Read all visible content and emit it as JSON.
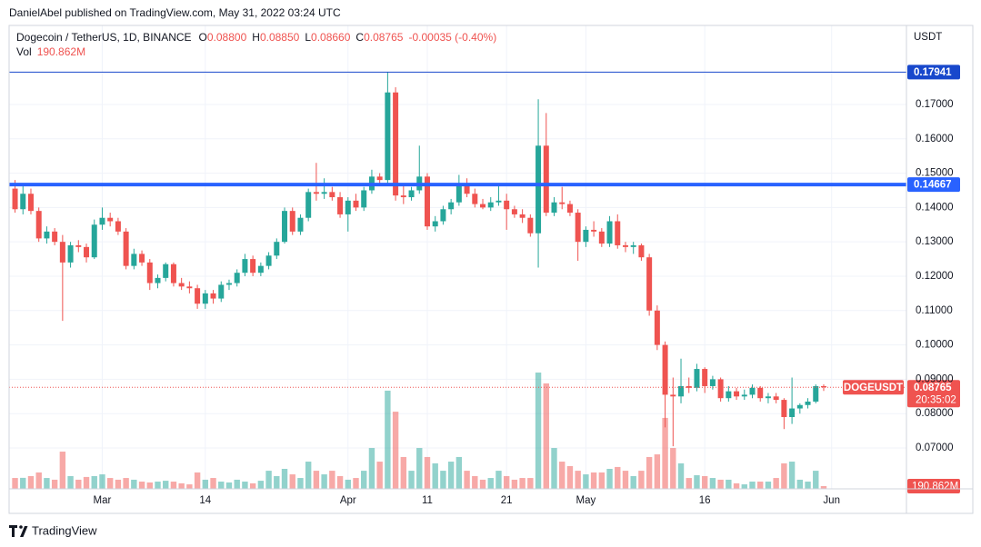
{
  "chart_data": {
    "type": "candlestick",
    "header": "DanielAbel published on TradingView.com, May 31, 2022 03:24 UTC",
    "legend": {
      "symbol": "Dogecoin / TetherUS, 1D, BINANCE",
      "open_label": "O",
      "open": "0.08800",
      "high_label": "H",
      "high": "0.08850",
      "low_label": "L",
      "low": "0.08660",
      "close_label": "C",
      "close": "0.08765",
      "change": "-0.00035 (-0.40%)",
      "volume_label": "Vol",
      "volume": "190.862M"
    },
    "currency": "USDT",
    "footer": "TradingView",
    "categories": [
      null,
      null,
      null,
      null,
      null,
      null,
      null,
      null,
      null,
      null,
      null,
      "Mar",
      null,
      null,
      null,
      null,
      null,
      null,
      null,
      null,
      null,
      null,
      null,
      null,
      "14",
      null,
      null,
      null,
      null,
      null,
      null,
      null,
      null,
      null,
      null,
      null,
      null,
      null,
      null,
      null,
      null,
      null,
      "Apr",
      null,
      null,
      null,
      null,
      null,
      null,
      null,
      null,
      null,
      "11",
      null,
      null,
      null,
      null,
      null,
      null,
      null,
      null,
      null,
      "21",
      null,
      null,
      null,
      null,
      null,
      null,
      null,
      null,
      null,
      "May",
      null,
      null,
      null,
      null,
      null,
      null,
      null,
      null,
      null,
      null,
      null,
      null,
      null,
      null,
      "16",
      null,
      null,
      null,
      null,
      null,
      null,
      null,
      null,
      null,
      null,
      null,
      null,
      null,
      null,
      null,
      "Jun",
      null,
      null,
      null,
      null,
      null,
      null,
      null,
      null,
      null
    ],
    "open": [
      0.1455,
      0.1395,
      0.144,
      0.139,
      0.131,
      0.133,
      0.13,
      0.124,
      0.129,
      0.1285,
      0.1255,
      0.135,
      0.137,
      0.136,
      0.133,
      0.123,
      0.1265,
      0.124,
      0.118,
      0.1195,
      0.1235,
      0.118,
      0.117,
      0.1165,
      0.112,
      0.115,
      0.1135,
      0.1175,
      0.118,
      0.121,
      0.125,
      0.121,
      0.123,
      0.126,
      0.13,
      0.139,
      0.133,
      0.137,
      0.1445,
      0.144,
      0.1445,
      0.143,
      0.138,
      0.142,
      0.14,
      0.145,
      0.149,
      0.148,
      0.1735,
      0.1435,
      0.143,
      0.145,
      0.149,
      0.1345,
      0.136,
      0.1395,
      0.1415,
      0.1465,
      0.144,
      0.141,
      0.14,
      0.1415,
      0.142,
      0.1395,
      0.138,
      0.137,
      0.1325,
      0.158,
      0.1385,
      0.1415,
      0.141,
      0.1385,
      0.13,
      0.1335,
      0.133,
      0.1295,
      0.136,
      0.129,
      0.1285,
      0.129,
      0.1255,
      0.11,
      0.1,
      0.0855,
      0.085,
      0.088,
      0.0875,
      0.093,
      0.088,
      0.09,
      0.0845,
      0.0865,
      0.085,
      0.0855,
      0.0875,
      0.0845,
      0.085,
      0.084,
      0.079,
      0.0815,
      0.0825,
      0.0835,
      0.088,
      null,
      null,
      null,
      null,
      null,
      null,
      null,
      null,
      null,
      null
    ],
    "high": [
      0.148,
      0.1465,
      0.1455,
      0.14,
      0.1345,
      0.134,
      0.132,
      0.13,
      0.1305,
      0.1295,
      0.1365,
      0.14,
      0.1385,
      0.137,
      0.134,
      0.128,
      0.1275,
      0.125,
      0.1205,
      0.124,
      0.124,
      0.1195,
      0.1185,
      0.1175,
      0.116,
      0.116,
      0.1185,
      0.119,
      0.122,
      0.1265,
      0.126,
      0.124,
      0.127,
      0.131,
      0.14,
      0.14,
      0.138,
      0.1455,
      0.153,
      0.1485,
      0.146,
      0.1445,
      0.143,
      0.144,
      0.146,
      0.151,
      0.15,
      0.17941,
      0.175,
      0.1465,
      0.146,
      0.158,
      0.15,
      0.1375,
      0.1405,
      0.1425,
      0.1495,
      0.1485,
      0.1455,
      0.1425,
      0.143,
      0.147,
      0.144,
      0.1405,
      0.1395,
      0.138,
      0.1715,
      0.1675,
      0.143,
      0.146,
      0.142,
      0.1395,
      0.1345,
      0.136,
      0.134,
      0.1375,
      0.138,
      0.13,
      0.13,
      0.1295,
      0.1265,
      0.1115,
      0.101,
      0.0905,
      0.096,
      0.0905,
      0.0945,
      0.0935,
      0.091,
      0.0905,
      0.088,
      0.0875,
      0.087,
      0.0885,
      0.088,
      0.086,
      0.086,
      0.0845,
      0.0905,
      0.083,
      0.0845,
      0.0885,
      0.0885,
      null,
      null,
      null,
      null,
      null,
      null,
      null,
      null,
      null,
      null
    ],
    "low": [
      0.1385,
      0.138,
      0.138,
      0.13,
      0.1295,
      0.129,
      0.107,
      0.1225,
      0.127,
      0.124,
      0.125,
      0.1335,
      0.1345,
      0.132,
      0.122,
      0.122,
      0.123,
      0.116,
      0.1165,
      0.1185,
      0.117,
      0.116,
      0.115,
      0.1105,
      0.1105,
      0.112,
      0.1125,
      0.116,
      0.117,
      0.12,
      0.12,
      0.12,
      0.122,
      0.125,
      0.1295,
      0.132,
      0.132,
      0.136,
      0.142,
      0.1425,
      0.142,
      0.137,
      0.133,
      0.139,
      0.139,
      0.144,
      0.1465,
      0.147,
      0.142,
      0.141,
      0.142,
      0.144,
      0.1335,
      0.133,
      0.135,
      0.138,
      0.1405,
      0.143,
      0.14,
      0.1395,
      0.139,
      0.1405,
      0.1335,
      0.137,
      0.1355,
      0.1315,
      0.1225,
      0.1375,
      0.1375,
      0.1395,
      0.1375,
      0.1245,
      0.1285,
      0.1315,
      0.1285,
      0.1285,
      0.128,
      0.127,
      0.1265,
      0.1245,
      0.1085,
      0.0985,
      0.076,
      0.0705,
      0.083,
      0.086,
      0.0865,
      0.086,
      0.087,
      0.0835,
      0.0835,
      0.084,
      0.084,
      0.0845,
      0.0835,
      0.083,
      0.083,
      0.0755,
      0.077,
      0.08,
      0.0815,
      0.083,
      0.0866,
      null,
      null,
      null,
      null,
      null,
      null,
      null,
      null,
      null,
      null
    ],
    "close": [
      0.1395,
      0.144,
      0.139,
      0.131,
      0.133,
      0.13,
      0.124,
      0.129,
      0.1285,
      0.1255,
      0.135,
      0.137,
      0.136,
      0.133,
      0.123,
      0.1265,
      0.124,
      0.118,
      0.1195,
      0.1235,
      0.118,
      0.117,
      0.1165,
      0.112,
      0.115,
      0.1135,
      0.1175,
      0.118,
      0.121,
      0.125,
      0.121,
      0.123,
      0.126,
      0.13,
      0.139,
      0.133,
      0.137,
      0.1445,
      0.144,
      0.1445,
      0.143,
      0.138,
      0.142,
      0.14,
      0.145,
      0.149,
      0.148,
      0.1735,
      0.1435,
      0.143,
      0.145,
      0.149,
      0.1345,
      0.136,
      0.1395,
      0.1415,
      0.1465,
      0.144,
      0.141,
      0.14,
      0.1415,
      0.142,
      0.1395,
      0.138,
      0.137,
      0.1325,
      0.158,
      0.1385,
      0.1415,
      0.141,
      0.1385,
      0.13,
      0.1335,
      0.133,
      0.1295,
      0.136,
      0.129,
      0.1285,
      0.129,
      0.1255,
      0.11,
      0.1,
      0.0855,
      0.085,
      0.088,
      0.0875,
      0.093,
      0.088,
      0.09,
      0.0845,
      0.0865,
      0.085,
      0.0855,
      0.0875,
      0.0845,
      0.085,
      0.084,
      0.079,
      0.0815,
      0.0825,
      0.0835,
      0.088,
      0.08765,
      null,
      null,
      null,
      null,
      null,
      null,
      null,
      null,
      null,
      null
    ],
    "volume": [
      750,
      760,
      880,
      1130,
      750,
      630,
      2570,
      880,
      630,
      820,
      880,
      1000,
      750,
      630,
      750,
      630,
      500,
      440,
      500,
      560,
      500,
      380,
      310,
      1130,
      630,
      750,
      500,
      440,
      630,
      500,
      380,
      560,
      1250,
      880,
      1380,
      1000,
      750,
      1880,
      1250,
      1000,
      1250,
      880,
      630,
      750,
      1250,
      2820,
      1880,
      6780,
      5330,
      2200,
      1250,
      2820,
      2200,
      1760,
      1250,
      1880,
      2200,
      1250,
      880,
      630,
      750,
      1250,
      880,
      630,
      750,
      750,
      8030,
      7280,
      2820,
      1880,
      1570,
      1250,
      1000,
      1130,
      1130,
      1380,
      1510,
      1250,
      880,
      1250,
      2200,
      2380,
      4900,
      2820,
      1760,
      750,
      940,
      880,
      750,
      630,
      630,
      380,
      310,
      500,
      500,
      500,
      750,
      1760,
      1880,
      630,
      500,
      1250,
      190.862,
      null,
      null,
      null,
      null,
      null,
      null,
      null,
      null,
      null,
      null
    ],
    "up_color": "#26a69a",
    "down_color": "#ef5350",
    "ylim": [
      0.0581,
      0.193
    ],
    "yticks": [
      {
        "value": 0.07,
        "label": "0.07000"
      },
      {
        "value": 0.08,
        "label": "0.08000"
      },
      {
        "value": 0.09,
        "label": "0.09000"
      },
      {
        "value": 0.1,
        "label": "0.10000"
      },
      {
        "value": 0.11,
        "label": "0.11000"
      },
      {
        "value": 0.12,
        "label": "0.12000"
      },
      {
        "value": 0.13,
        "label": "0.13000"
      },
      {
        "value": 0.14,
        "label": "0.14000"
      },
      {
        "value": 0.15,
        "label": "0.15000"
      },
      {
        "value": 0.16,
        "label": "0.16000"
      },
      {
        "value": 0.17,
        "label": "0.17000"
      }
    ],
    "volume_ylim": [
      0,
      32000
    ],
    "grid": true,
    "levels": [
      {
        "value": 0.17941,
        "label": "0.17941",
        "color": "#1848cc",
        "width": 1
      },
      {
        "value": 0.14667,
        "label": "0.14667",
        "color": "#2962ff",
        "width": 4
      }
    ],
    "last_price": {
      "tag": "DOGEUSDT",
      "label": "0.08765",
      "countdown": "20:35:02",
      "volume_label": "190.862M"
    }
  }
}
